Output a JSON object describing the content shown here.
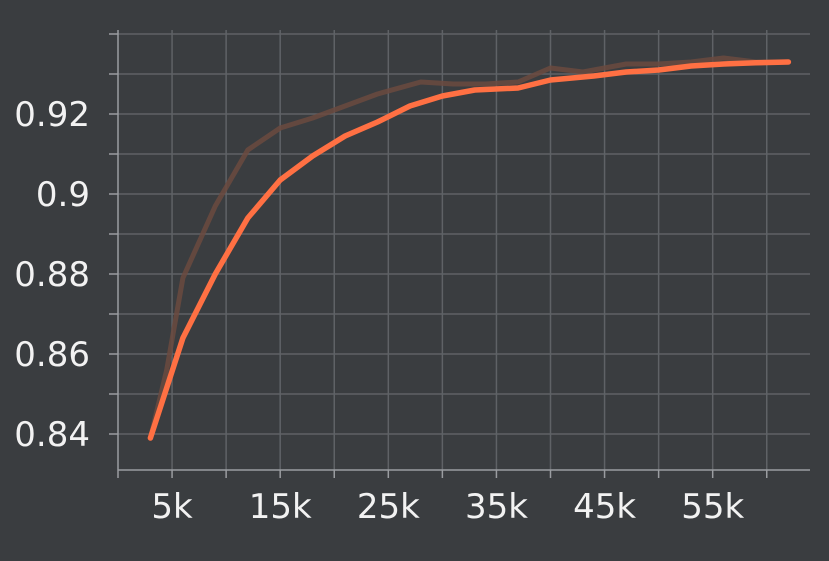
{
  "chart_data": {
    "type": "line",
    "title": "",
    "xlabel": "",
    "ylabel": "",
    "xlim": [
      0,
      64000
    ],
    "ylim": [
      0.831,
      0.941
    ],
    "grid": true,
    "x_tick_values": [
      5000,
      15000,
      25000,
      35000,
      45000,
      55000
    ],
    "x_tick_labels": [
      "5k",
      "15k",
      "25k",
      "35k",
      "45k",
      "55k"
    ],
    "y_tick_values": [
      0.84,
      0.86,
      0.88,
      0.9,
      0.92
    ],
    "y_tick_labels": [
      "0.84",
      "0.86",
      "0.88",
      "0.9",
      "0.92"
    ],
    "series": [
      {
        "name": "",
        "role": "raw",
        "color": "#6b4a40",
        "x": [
          3000,
          4500,
          6000,
          9000,
          12000,
          15000,
          18000,
          21000,
          24000,
          28000,
          31000,
          34000,
          37000,
          40000,
          43000,
          47000,
          50000,
          53000,
          56000,
          59000,
          62000
        ],
        "y": [
          0.839,
          0.856,
          0.879,
          0.897,
          0.911,
          0.9165,
          0.919,
          0.922,
          0.925,
          0.928,
          0.9275,
          0.9275,
          0.928,
          0.9315,
          0.9305,
          0.9325,
          0.9325,
          0.933,
          0.934,
          0.933,
          0.933
        ]
      },
      {
        "name": "",
        "role": "smoothed",
        "color": "#ff7043",
        "x": [
          3000,
          6000,
          9000,
          12000,
          15000,
          18000,
          21000,
          24000,
          27000,
          30000,
          33000,
          37000,
          40000,
          44000,
          47000,
          50000,
          53000,
          56000,
          59000,
          62000
        ],
        "y": [
          0.839,
          0.864,
          0.88,
          0.894,
          0.9035,
          0.9095,
          0.9145,
          0.918,
          0.922,
          0.9245,
          0.926,
          0.9265,
          0.9285,
          0.9295,
          0.9305,
          0.931,
          0.932,
          0.9325,
          0.9328,
          0.933
        ]
      }
    ]
  }
}
